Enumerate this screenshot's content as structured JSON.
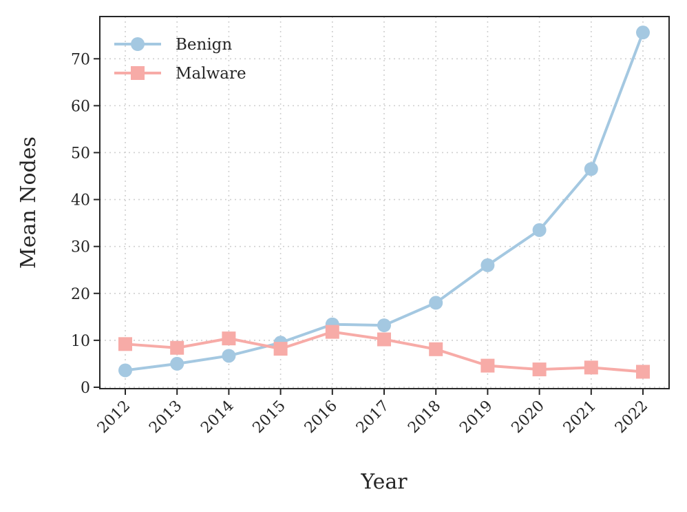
{
  "chart_data": {
    "type": "line",
    "title": "",
    "xlabel": "Year",
    "ylabel": "Mean Nodes",
    "categories": [
      "2012",
      "2013",
      "2014",
      "2015",
      "2016",
      "2017",
      "2018",
      "2019",
      "2020",
      "2021",
      "2022"
    ],
    "y_ticks": [
      0,
      10,
      20,
      30,
      40,
      50,
      60,
      70
    ],
    "ylim": [
      -0.3,
      79
    ],
    "grid": true,
    "legend_position": "top-left",
    "series": [
      {
        "name": "Benign",
        "marker": "circle",
        "color": "#a4c8e1",
        "values": [
          3.6,
          5.0,
          6.7,
          9.5,
          13.4,
          13.2,
          18.0,
          26.0,
          33.5,
          46.5,
          75.6
        ]
      },
      {
        "name": "Malware",
        "marker": "square",
        "color": "#f7aba7",
        "values": [
          9.2,
          8.4,
          10.4,
          8.2,
          11.8,
          10.2,
          8.1,
          4.6,
          3.8,
          4.2,
          3.3
        ]
      }
    ]
  }
}
